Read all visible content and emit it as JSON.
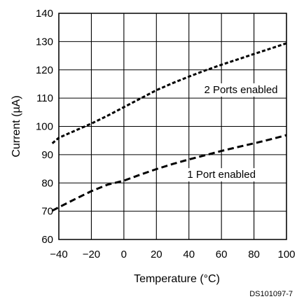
{
  "chart_data": {
    "type": "line",
    "xlabel": "Temperature (°C)",
    "ylabel": "Current (µA)",
    "xlim": [
      -40,
      100
    ],
    "ylim": [
      60,
      140
    ],
    "xticks": [
      -40,
      -20,
      0,
      20,
      40,
      60,
      80,
      100
    ],
    "yticks": [
      60,
      70,
      80,
      90,
      100,
      110,
      120,
      130,
      140
    ],
    "xtick_labels": [
      "−40",
      "−20",
      "0",
      "20",
      "40",
      "60",
      "80",
      "100"
    ],
    "ytick_labels": [
      "60",
      "70",
      "80",
      "90",
      "100",
      "110",
      "120",
      "130",
      "140"
    ],
    "grid": true,
    "legend": "none",
    "series": [
      {
        "name": "2 Ports enabled",
        "style": "dotted-dashed",
        "x": [
          -44,
          -40,
          -30,
          -20,
          -10,
          0,
          10,
          20,
          30,
          40,
          50,
          60,
          70,
          80,
          90,
          100
        ],
        "y": [
          94,
          96,
          98.5,
          101,
          103.8,
          106.8,
          109.8,
          112.8,
          115.3,
          117.6,
          119.8,
          121.8,
          123.7,
          125.6,
          127.5,
          129.4
        ]
      },
      {
        "name": "1 Port enabled",
        "style": "dashed",
        "x": [
          -44,
          -40,
          -30,
          -20,
          -10,
          0,
          10,
          20,
          30,
          40,
          50,
          60,
          70,
          80,
          90,
          100
        ],
        "y": [
          70.2,
          71.4,
          74.3,
          77.1,
          79.4,
          80.8,
          82.9,
          84.9,
          86.7,
          88.3,
          89.8,
          91.3,
          92.7,
          94,
          95.4,
          96.9
        ]
      }
    ],
    "annotations": [
      {
        "text": "2 Ports enabled",
        "x": 72,
        "y": 113
      },
      {
        "text": "1 Port enabled",
        "x": 60,
        "y": 83
      }
    ],
    "figure_id": "DS101097-7"
  }
}
